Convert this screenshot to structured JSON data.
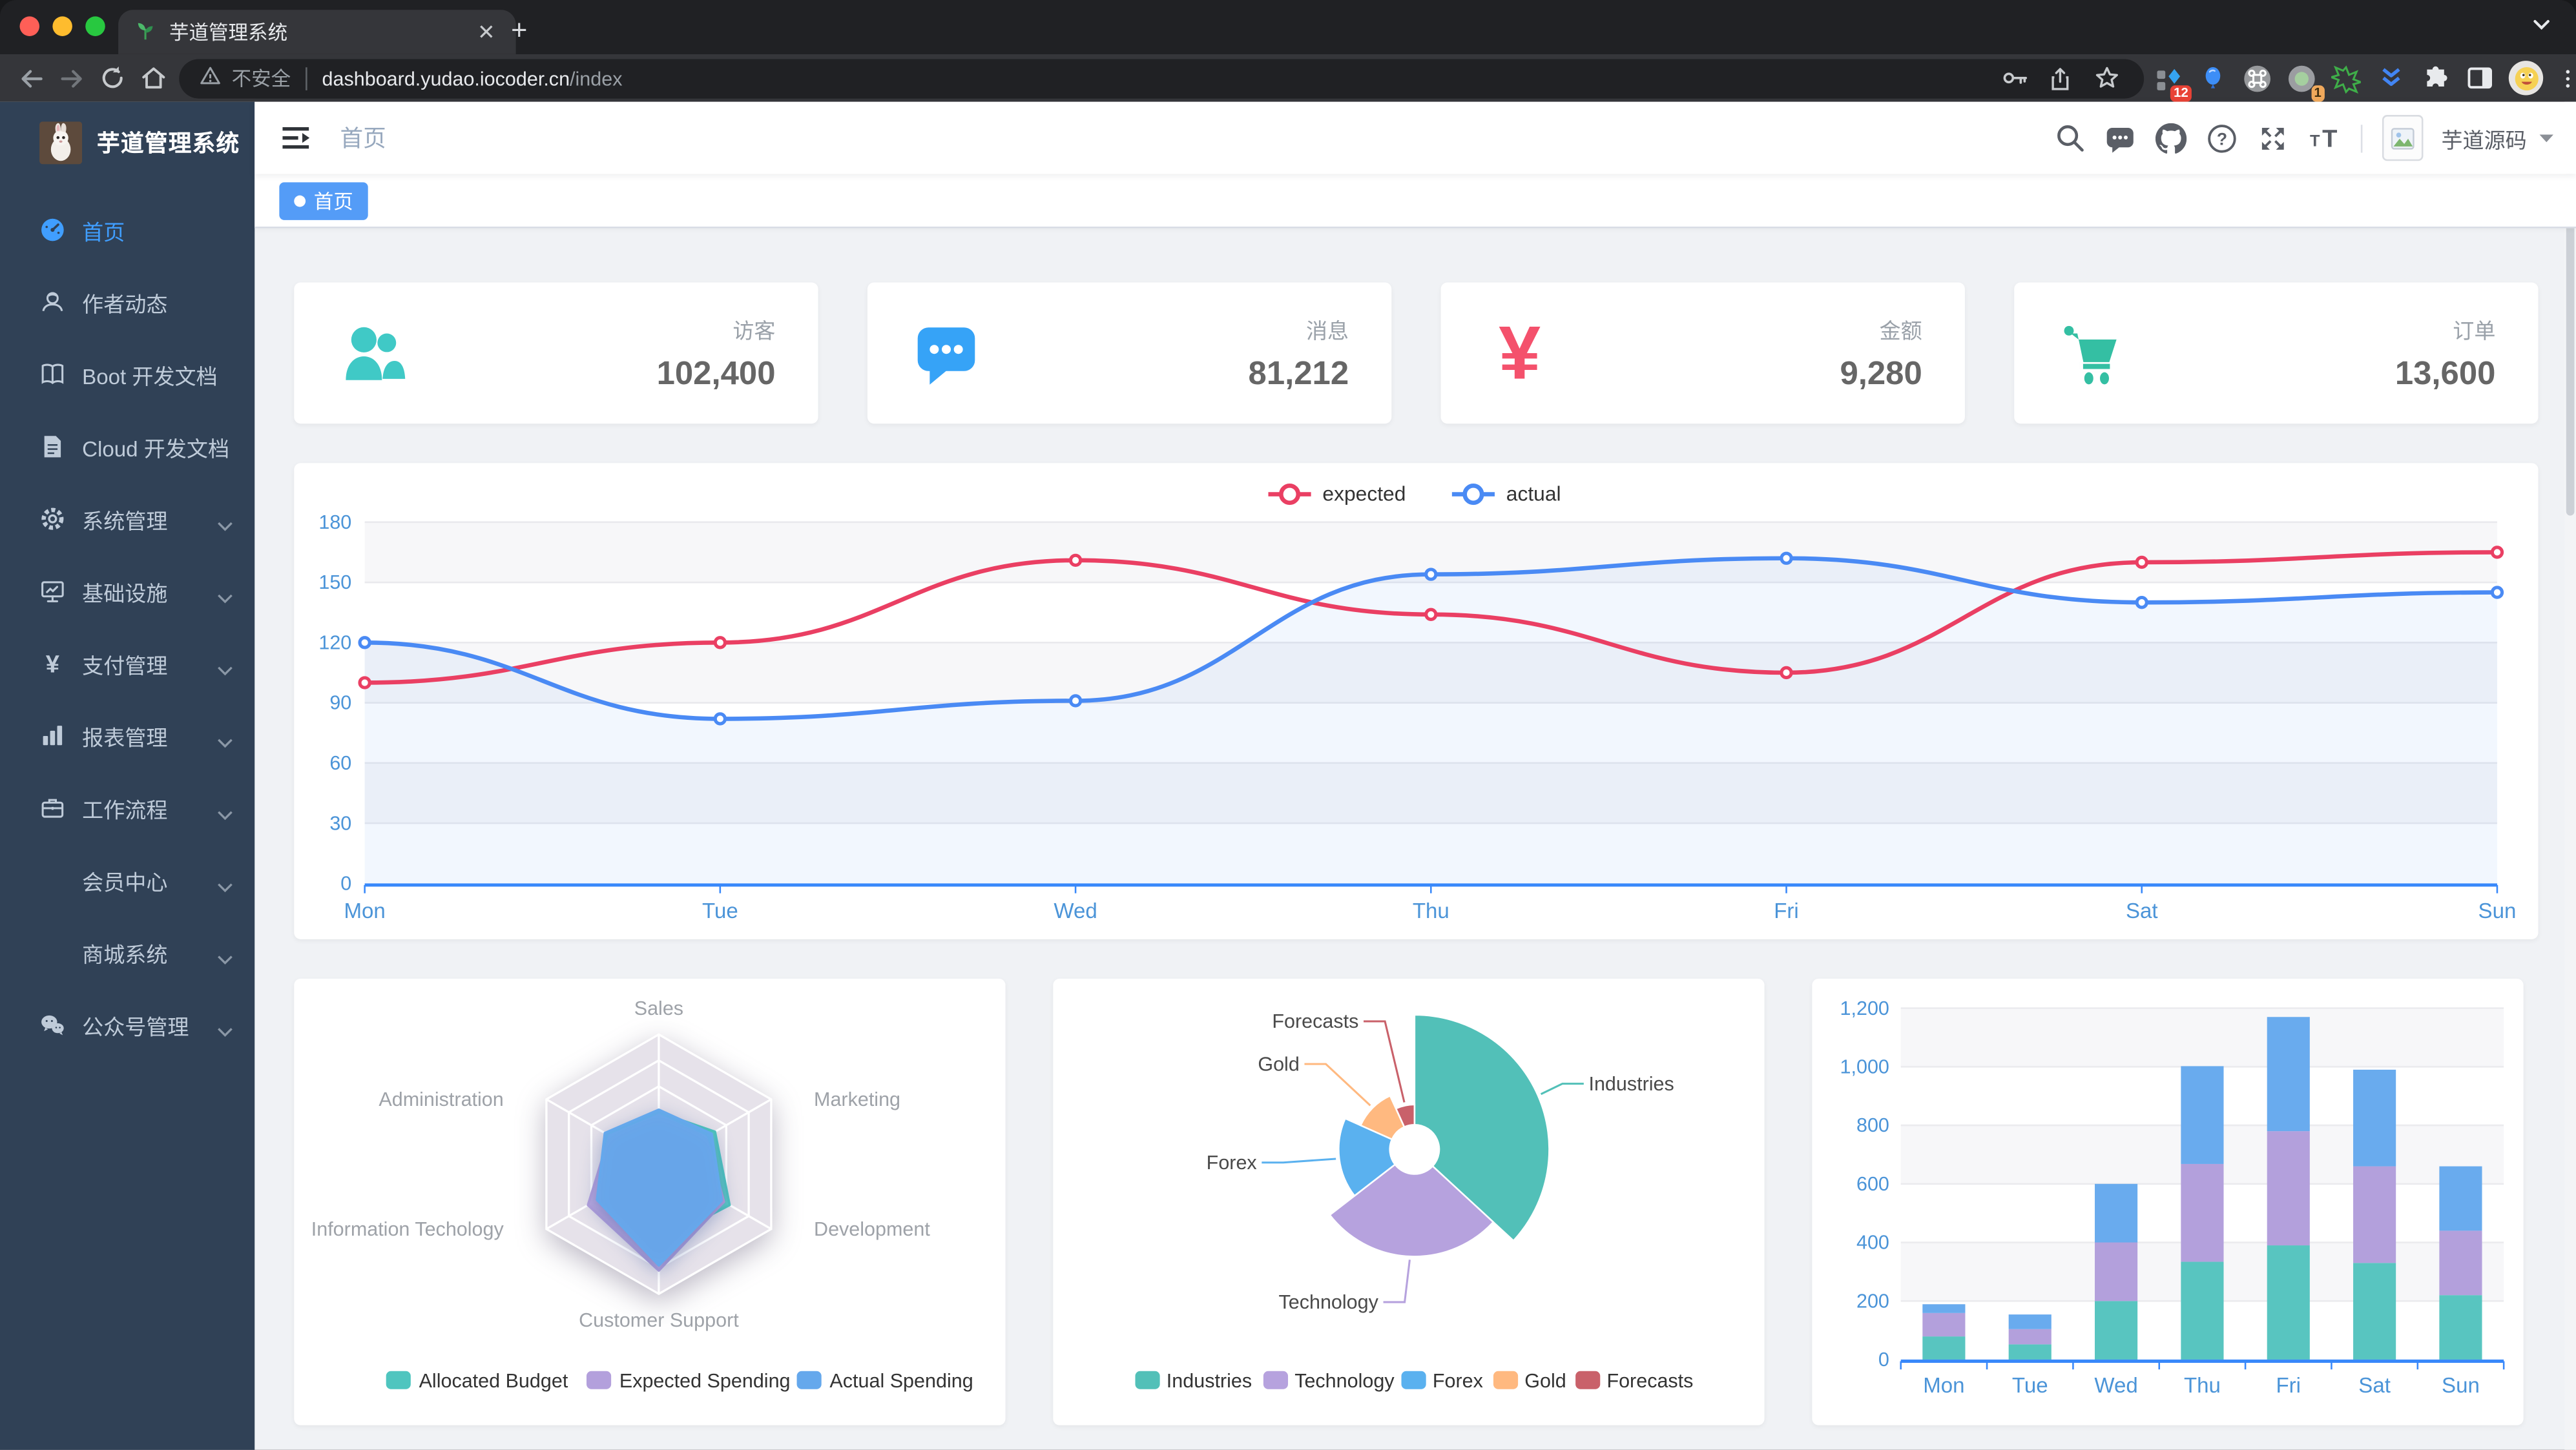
{
  "browser": {
    "tab_title": "芋道管理系统",
    "security_label": "不安全",
    "url_domain": "dashboard.yudao.iocoder.cn",
    "url_path": "/index",
    "extension_badges": {
      "pinned_1": "12",
      "pinned_2": "1"
    }
  },
  "sidebar": {
    "logo_title": "芋道管理系统",
    "items": [
      {
        "label": "首页",
        "icon": "dashboard-icon",
        "active": true
      },
      {
        "label": "作者动态",
        "icon": "people-icon"
      },
      {
        "label": "Boot 开发文档",
        "icon": "book-icon"
      },
      {
        "label": "Cloud 开发文档",
        "icon": "document-icon"
      },
      {
        "label": "系统管理",
        "icon": "gear-icon",
        "expandable": true
      },
      {
        "label": "基础设施",
        "icon": "monitor-icon",
        "expandable": true
      },
      {
        "label": "支付管理",
        "icon": "yen-icon",
        "expandable": true
      },
      {
        "label": "报表管理",
        "icon": "bar-chart-icon",
        "expandable": true
      },
      {
        "label": "工作流程",
        "icon": "briefcase-icon",
        "expandable": true
      },
      {
        "label": "会员中心",
        "icon": null,
        "expandable": true
      },
      {
        "label": "商城系统",
        "icon": null,
        "expandable": true
      },
      {
        "label": "公众号管理",
        "icon": "wechat-icon",
        "expandable": true
      }
    ]
  },
  "navbar": {
    "breadcrumb": "首页",
    "username": "芋道源码"
  },
  "tags_bar": {
    "active_tag": "首页"
  },
  "stat_cards": [
    {
      "label": "访客",
      "value": "102,400",
      "icon": "peoples-icon",
      "color": "#40c9c6"
    },
    {
      "label": "消息",
      "value": "81,212",
      "icon": "message-icon",
      "color": "#36a3f7"
    },
    {
      "label": "金额",
      "value": "9,280",
      "icon": "money-icon",
      "color": "#f4516c"
    },
    {
      "label": "订单",
      "value": "13,600",
      "icon": "shopping-cart-icon",
      "color": "#34bfa3"
    }
  ],
  "chart_data": [
    {
      "id": "weekly-activity",
      "type": "line",
      "x": [
        "Mon",
        "Tue",
        "Wed",
        "Thu",
        "Fri",
        "Sat",
        "Sun"
      ],
      "series": [
        {
          "name": "expected",
          "color": "#ea3f63",
          "values": [
            100,
            120,
            161,
            134,
            105,
            160,
            165
          ]
        },
        {
          "name": "actual",
          "color": "#4a8af4",
          "values": [
            120,
            82,
            91,
            154,
            162,
            140,
            145
          ]
        }
      ],
      "ylim": [
        0,
        180
      ],
      "ytick_step": 30,
      "legend_position": "top",
      "grid": true
    },
    {
      "id": "budget-radar",
      "type": "radar",
      "axis_max": 100,
      "indicators": [
        "Sales",
        "Marketing",
        "Development",
        "Customer Support",
        "Information Techology",
        "Administration"
      ],
      "series": [
        {
          "name": "Allocated Budget",
          "color": "#4fc5bf",
          "values": [
            40,
            50,
            63,
            60,
            55,
            46
          ]
        },
        {
          "name": "Expected Spending",
          "color": "#b3a0dc",
          "values": [
            38,
            42,
            58,
            82,
            63,
            44
          ]
        },
        {
          "name": "Actual Spending",
          "color": "#65a8ec",
          "values": [
            42,
            47,
            56,
            78,
            55,
            48
          ]
        }
      ],
      "legend_position": "bottom"
    },
    {
      "id": "weekly-sales-pie",
      "type": "pie",
      "rose": true,
      "slices": [
        {
          "label": "Industries",
          "value": 320,
          "color": "#52c0b8"
        },
        {
          "label": "Technology",
          "value": 240,
          "color": "#b6a2de"
        },
        {
          "label": "Forex",
          "value": 149,
          "color": "#5ab1ef"
        },
        {
          "label": "Gold",
          "value": 100,
          "color": "#ffb980"
        },
        {
          "label": "Forecasts",
          "value": 59,
          "color": "#c9616a"
        }
      ],
      "legend_position": "bottom"
    },
    {
      "id": "weekly-visits-bar",
      "type": "bar",
      "stacked": true,
      "categories": [
        "Mon",
        "Tue",
        "Wed",
        "Thu",
        "Fri",
        "Sat",
        "Sun"
      ],
      "series": [
        {
          "color": "#58c5c0",
          "values": [
            79,
            52,
            200,
            334,
            390,
            330,
            220
          ]
        },
        {
          "color": "#b3a0dc",
          "values": [
            80,
            52,
            200,
            334,
            390,
            330,
            220
          ]
        },
        {
          "color": "#69abee",
          "values": [
            30,
            50,
            200,
            334,
            390,
            330,
            220
          ]
        }
      ],
      "ylim": [
        0,
        1200
      ],
      "ytick_step": 200,
      "ytick_labels": [
        "0",
        "200",
        "400",
        "600",
        "800",
        "1,000",
        "1,200"
      ]
    }
  ],
  "theme": {
    "accent_blue": "#409EFF",
    "sidebar_bg": "#304156",
    "sidebar_text": "#bfcbd9",
    "content_bg": "#f0f2f5",
    "tag_active_bg": "#549cf7",
    "axis_label_color": "#4b94d8"
  }
}
